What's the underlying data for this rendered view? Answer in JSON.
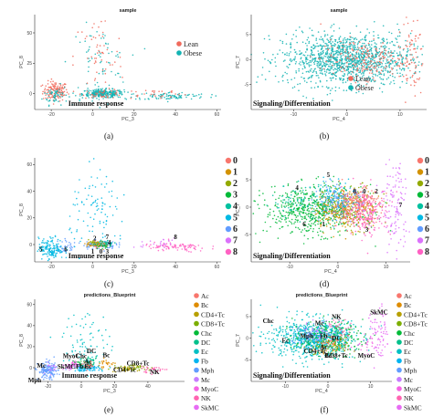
{
  "chart_data": [
    {
      "panel": "(a)",
      "type": "scatter",
      "title": "sample",
      "xlabel": "PC_3",
      "ylabel": "PC_8",
      "x_ticks": [
        -20,
        0,
        20,
        40,
        60
      ],
      "y_ticks": [
        0,
        25,
        50
      ],
      "xlim": [
        -28,
        62
      ],
      "ylim": [
        -13,
        65
      ],
      "annotation": "Immune response",
      "legend": [
        {
          "name": "Lean",
          "color": "#f06a5c"
        },
        {
          "name": "Obese",
          "color": "#13b3b3"
        }
      ],
      "clusters": [
        {
          "group": 0,
          "cx": -18,
          "cy": 2,
          "sx": 3,
          "sy": 4,
          "n": 140
        },
        {
          "group": 1,
          "cx": -18,
          "cy": -1,
          "sx": 3,
          "sy": 4,
          "n": 60
        },
        {
          "group": 1,
          "cx": 5,
          "cy": 0,
          "sx": 5,
          "sy": 1.8,
          "n": 260
        },
        {
          "group": 0,
          "cx": 5,
          "cy": 0,
          "sx": 5,
          "sy": 1.8,
          "n": 40
        },
        {
          "group": 1,
          "cx": 3,
          "cy": 25,
          "sx": 7,
          "sy": 15,
          "n": 70
        },
        {
          "group": 0,
          "cx": 3,
          "cy": 30,
          "sx": 6,
          "sy": 18,
          "n": 55
        },
        {
          "group": 1,
          "cx": 38,
          "cy": -2,
          "sx": 9,
          "sy": 1.6,
          "n": 90
        },
        {
          "group": 0,
          "cx": 30,
          "cy": 0,
          "sx": 8,
          "sy": 2,
          "n": 30
        }
      ]
    },
    {
      "panel": "(b)",
      "type": "scatter",
      "title": "sample",
      "xlabel": "PC_4",
      "ylabel": "PC_7",
      "x_ticks": [
        -10,
        0,
        10
      ],
      "y_ticks": [
        -5,
        0,
        5
      ],
      "xlim": [
        -18,
        15
      ],
      "ylim": [
        -10,
        9
      ],
      "annotation": "Signaling/Differentiation",
      "legend": [
        {
          "name": "Lean",
          "color": "#f06a5c"
        },
        {
          "name": "Obese",
          "color": "#13b3b3"
        }
      ],
      "clusters": [
        {
          "group": 1,
          "cx": 0,
          "cy": 0,
          "sx": 6,
          "sy": 2.6,
          "n": 1300
        },
        {
          "group": 0,
          "cx": 3,
          "cy": 0,
          "sx": 4,
          "sy": 2,
          "n": 200
        },
        {
          "group": 0,
          "cx": 12,
          "cy": 0,
          "sx": 1.2,
          "sy": 4,
          "n": 70
        }
      ]
    },
    {
      "panel": "(c)",
      "type": "scatter",
      "title": "",
      "xlabel": "PC_3",
      "ylabel": "PC_8",
      "x_ticks": [
        -20,
        0,
        20,
        40,
        60
      ],
      "y_ticks": [
        0,
        20,
        40,
        60
      ],
      "xlim": [
        -28,
        62
      ],
      "ylim": [
        -13,
        65
      ],
      "annotation": "Immune response",
      "legend": [
        {
          "name": "0",
          "color": "#f8766d"
        },
        {
          "name": "1",
          "color": "#d39200"
        },
        {
          "name": "2",
          "color": "#93aa00"
        },
        {
          "name": "3",
          "color": "#00ba38"
        },
        {
          "name": "4",
          "color": "#00c19f"
        },
        {
          "name": "5",
          "color": "#00b9e3"
        },
        {
          "name": "6",
          "color": "#619cff"
        },
        {
          "name": "7",
          "color": "#db72fb"
        },
        {
          "name": "8",
          "color": "#ff61c3"
        }
      ],
      "cluster_labels": [
        {
          "text": "5",
          "x": -25,
          "y": -5
        },
        {
          "text": "6",
          "x": -13,
          "y": -5
        },
        {
          "text": "1",
          "x": 0,
          "y": -7
        },
        {
          "text": "0",
          "x": 4,
          "y": -7
        },
        {
          "text": "3",
          "x": 7,
          "y": -7
        },
        {
          "text": "2",
          "x": 1,
          "y": 3
        },
        {
          "text": "7",
          "x": 7,
          "y": 4
        },
        {
          "text": "4",
          "x": 8,
          "y": 0
        },
        {
          "text": "8",
          "x": 40,
          "y": 4
        }
      ],
      "clusters": [
        {
          "group": 5,
          "cx": -20,
          "cy": -3,
          "sx": 3,
          "sy": 4,
          "n": 160
        },
        {
          "group": 6,
          "cx": -12,
          "cy": -1,
          "sx": 2.5,
          "sy": 2.5,
          "n": 30
        },
        {
          "group": 6,
          "cx": 3,
          "cy": 0,
          "sx": 4,
          "sy": 1.6,
          "n": 110
        },
        {
          "group": 1,
          "cx": 1,
          "cy": 0,
          "sx": 2,
          "sy": 1.2,
          "n": 40
        },
        {
          "group": 0,
          "cx": 4,
          "cy": 0,
          "sx": 2,
          "sy": 1.2,
          "n": 30
        },
        {
          "group": 3,
          "cx": 5,
          "cy": -1,
          "sx": 2,
          "sy": 1.2,
          "n": 25
        },
        {
          "group": 2,
          "cx": 2,
          "cy": 1,
          "sx": 2,
          "sy": 1.2,
          "n": 25
        },
        {
          "group": 4,
          "cx": 6,
          "cy": 1,
          "sx": 2,
          "sy": 1.2,
          "n": 20
        },
        {
          "group": 5,
          "cx": 3,
          "cy": 25,
          "sx": 7,
          "sy": 15,
          "n": 100
        },
        {
          "group": 8,
          "cx": 40,
          "cy": -2,
          "sx": 8,
          "sy": 1.8,
          "n": 90
        },
        {
          "group": 7,
          "cx": 30,
          "cy": 1,
          "sx": 7,
          "sy": 2,
          "n": 20
        }
      ]
    },
    {
      "panel": "(d)",
      "type": "scatter",
      "title": "",
      "xlabel": "PC_4",
      "ylabel": "PC_7",
      "x_ticks": [
        -10,
        0,
        10
      ],
      "y_ticks": [
        -5,
        0,
        5
      ],
      "xlim": [
        -18,
        15
      ],
      "ylim": [
        -10,
        9
      ],
      "annotation": "Signaling/Differentiation",
      "legend": [
        {
          "name": "0",
          "color": "#f8766d"
        },
        {
          "name": "1",
          "color": "#d39200"
        },
        {
          "name": "2",
          "color": "#93aa00"
        },
        {
          "name": "3",
          "color": "#00ba38"
        },
        {
          "name": "4",
          "color": "#00c19f"
        },
        {
          "name": "5",
          "color": "#00b9e3"
        },
        {
          "name": "6",
          "color": "#619cff"
        },
        {
          "name": "7",
          "color": "#db72fb"
        },
        {
          "name": "8",
          "color": "#ff61c3"
        }
      ],
      "cluster_labels": [
        {
          "text": "4",
          "x": -8.5,
          "y": 3.2
        },
        {
          "text": "5",
          "x": -2,
          "y": 5.5
        },
        {
          "text": "8",
          "x": 3.5,
          "y": 2.5
        },
        {
          "text": "0",
          "x": 5.5,
          "y": 2.5
        },
        {
          "text": "2",
          "x": 8,
          "y": 2.5
        },
        {
          "text": "7",
          "x": 13,
          "y": 0
        },
        {
          "text": "6",
          "x": -7,
          "y": -3.5
        },
        {
          "text": "1",
          "x": -3,
          "y": -3.5
        },
        {
          "text": "3",
          "x": 6,
          "y": -4.5
        }
      ],
      "clusters": [
        {
          "group": 3,
          "cx": -5,
          "cy": -0.5,
          "sx": 5,
          "sy": 2.2,
          "n": 600
        },
        {
          "group": 2,
          "cx": 3,
          "cy": 0,
          "sx": 3,
          "sy": 2,
          "n": 150
        },
        {
          "group": 1,
          "cx": 1,
          "cy": -0.5,
          "sx": 3,
          "sy": 1.8,
          "n": 200
        },
        {
          "group": 0,
          "cx": 4,
          "cy": 0.5,
          "sx": 2.5,
          "sy": 1.5,
          "n": 220
        },
        {
          "group": 6,
          "cx": 0,
          "cy": 1,
          "sx": 2.5,
          "sy": 1.4,
          "n": 120
        },
        {
          "group": 5,
          "cx": -1,
          "cy": 2.5,
          "sx": 2,
          "sy": 1.5,
          "n": 60
        },
        {
          "group": 8,
          "cx": 6,
          "cy": -1,
          "sx": 2.5,
          "sy": 2.2,
          "n": 200
        },
        {
          "group": 7,
          "cx": 12,
          "cy": 0,
          "sx": 1.3,
          "sy": 4.5,
          "n": 120
        },
        {
          "group": 4,
          "cx": -8,
          "cy": 1,
          "sx": 3,
          "sy": 1.5,
          "n": 80
        }
      ]
    },
    {
      "panel": "(e)",
      "type": "scatter",
      "title": "predictions_Blueprint",
      "xlabel": "PC_3",
      "ylabel": "PC_8",
      "x_ticks": [
        -20,
        0,
        20,
        40
      ],
      "y_ticks": [
        0,
        20,
        40,
        60
      ],
      "xlim": [
        -28,
        62
      ],
      "ylim": [
        -13,
        65
      ],
      "annotation": "Immune response",
      "legend": [
        {
          "name": "Ac",
          "color": "#f8766d"
        },
        {
          "name": "Bc",
          "color": "#de8c00"
        },
        {
          "name": "CD4+Tc",
          "color": "#b79f00"
        },
        {
          "name": "CD8+Tc",
          "color": "#7cae00"
        },
        {
          "name": "Chc",
          "color": "#00ba38"
        },
        {
          "name": "DC",
          "color": "#00c08b"
        },
        {
          "name": "Ec",
          "color": "#00bfc4"
        },
        {
          "name": "Fb",
          "color": "#00b4f0"
        },
        {
          "name": "Mph",
          "color": "#619cff"
        },
        {
          "name": "Mc",
          "color": "#c77cff"
        },
        {
          "name": "MyoC",
          "color": "#f564e3"
        },
        {
          "name": "NK",
          "color": "#ff64b0"
        },
        {
          "name": "SkMC",
          "color": "#e76bf3"
        }
      ],
      "cluster_labels": [
        {
          "text": "DC",
          "x": 6,
          "y": 14
        },
        {
          "text": "MyoC",
          "x": -6,
          "y": 9
        },
        {
          "text": "Chc",
          "x": 0,
          "y": 9
        },
        {
          "text": "Bc",
          "x": 15,
          "y": 10
        },
        {
          "text": "Ac",
          "x": 4,
          "y": 4
        },
        {
          "text": "Mc",
          "x": -24,
          "y": 0
        },
        {
          "text": "SkMC",
          "x": -9,
          "y": -1
        },
        {
          "text": "Fb",
          "x": -1,
          "y": -1
        },
        {
          "text": "Ec",
          "x": 4,
          "y": -1
        },
        {
          "text": "CD8+Tc",
          "x": 34,
          "y": 2
        },
        {
          "text": "CD4+Tc",
          "x": 26,
          "y": -4
        },
        {
          "text": "NK",
          "x": 44,
          "y": -6
        },
        {
          "text": "Mph",
          "x": -28,
          "y": -14
        }
      ],
      "clusters": [
        {
          "group": 8,
          "cx": -20,
          "cy": -3,
          "sx": 3,
          "sy": 4,
          "n": 150
        },
        {
          "group": 9,
          "cx": -18,
          "cy": 0,
          "sx": 2,
          "sy": 3,
          "n": 20
        },
        {
          "group": 7,
          "cx": 3,
          "cy": 0,
          "sx": 4,
          "sy": 1.6,
          "n": 120
        },
        {
          "group": 6,
          "cx": 3,
          "cy": 25,
          "sx": 7,
          "sy": 15,
          "n": 80
        },
        {
          "group": 4,
          "cx": 0,
          "cy": 4,
          "sx": 3,
          "sy": 2,
          "n": 40
        },
        {
          "group": 10,
          "cx": -4,
          "cy": 3,
          "sx": 2,
          "sy": 1.5,
          "n": 30
        },
        {
          "group": 5,
          "cx": 6,
          "cy": 6,
          "sx": 2,
          "sy": 2,
          "n": 30
        },
        {
          "group": 0,
          "cx": 4,
          "cy": 2,
          "sx": 2,
          "sy": 1.5,
          "n": 30
        },
        {
          "group": 12,
          "cx": -7,
          "cy": 0,
          "sx": 2,
          "sy": 1.5,
          "n": 20
        },
        {
          "group": 1,
          "cx": 15,
          "cy": 4,
          "sx": 3,
          "sy": 2,
          "n": 25
        },
        {
          "group": 3,
          "cx": 32,
          "cy": 0,
          "sx": 5,
          "sy": 1.5,
          "n": 45
        },
        {
          "group": 2,
          "cx": 26,
          "cy": -1,
          "sx": 4,
          "sy": 1.5,
          "n": 40
        },
        {
          "group": 11,
          "cx": 42,
          "cy": -2,
          "sx": 5,
          "sy": 1.5,
          "n": 35
        }
      ]
    },
    {
      "panel": "(f)",
      "type": "scatter",
      "title": "predictions_Blueprint",
      "xlabel": "PC_4",
      "ylabel": "PC_7",
      "x_ticks": [
        -10,
        0,
        10
      ],
      "y_ticks": [
        -5,
        0,
        5
      ],
      "xlim": [
        -18,
        15
      ],
      "ylim": [
        -10,
        9
      ],
      "annotation": "Signaling/Differentiation",
      "legend": [
        {
          "name": "Ac",
          "color": "#f8766d"
        },
        {
          "name": "Bc",
          "color": "#de8c00"
        },
        {
          "name": "CD4+Tc",
          "color": "#b79f00"
        },
        {
          "name": "CD8+Tc",
          "color": "#7cae00"
        },
        {
          "name": "Chc",
          "color": "#00ba38"
        },
        {
          "name": "DC",
          "color": "#00c08b"
        },
        {
          "name": "Ec",
          "color": "#00bfc4"
        },
        {
          "name": "Fb",
          "color": "#00b4f0"
        },
        {
          "name": "Mph",
          "color": "#619cff"
        },
        {
          "name": "Mc",
          "color": "#c77cff"
        },
        {
          "name": "MyoC",
          "color": "#f564e3"
        },
        {
          "name": "NK",
          "color": "#ff64b0"
        },
        {
          "name": "SkMC",
          "color": "#e76bf3"
        }
      ],
      "cluster_labels": [
        {
          "text": "Chc",
          "x": -14,
          "y": 3.5
        },
        {
          "text": "Mc",
          "x": -2,
          "y": 3
        },
        {
          "text": "NK",
          "x": 2,
          "y": 4.5
        },
        {
          "text": "SkMC",
          "x": 12,
          "y": 5.5
        },
        {
          "text": "Ec",
          "x": -10,
          "y": -1
        },
        {
          "text": "Mph",
          "x": -5,
          "y": 0
        },
        {
          "text": "Fb",
          "x": -1,
          "y": 0
        },
        {
          "text": "DC",
          "x": 2,
          "y": -0.5
        },
        {
          "text": "Ac",
          "x": -1,
          "y": -2.5
        },
        {
          "text": "CD4+Tc",
          "x": -3,
          "y": -3.5
        },
        {
          "text": "Bc",
          "x": 0,
          "y": -4.5
        },
        {
          "text": "CD8+Tc",
          "x": 2,
          "y": -4.5
        },
        {
          "text": "MyoC",
          "x": 9,
          "y": -4.5
        }
      ],
      "clusters": [
        {
          "group": 6,
          "cx": -4,
          "cy": 0,
          "sx": 5,
          "sy": 2.4,
          "n": 650
        },
        {
          "group": 4,
          "cx": 0,
          "cy": 0,
          "sx": 4,
          "sy": 2,
          "n": 250
        },
        {
          "group": 7,
          "cx": -1,
          "cy": 0,
          "sx": 3,
          "sy": 1.6,
          "n": 120
        },
        {
          "group": 9,
          "cx": -2,
          "cy": 1.5,
          "sx": 2,
          "sy": 1.2,
          "n": 50
        },
        {
          "group": 5,
          "cx": 2,
          "cy": 0,
          "sx": 2,
          "sy": 1.4,
          "n": 60
        },
        {
          "group": 0,
          "cx": 1,
          "cy": -1,
          "sx": 2,
          "sy": 1.2,
          "n": 40
        },
        {
          "group": 8,
          "cx": -5,
          "cy": 0.5,
          "sx": 2,
          "sy": 1.2,
          "n": 40
        },
        {
          "group": 11,
          "cx": 3,
          "cy": 2,
          "sx": 1.5,
          "sy": 1.2,
          "n": 30
        },
        {
          "group": 12,
          "cx": 12,
          "cy": 1,
          "sx": 1.3,
          "sy": 4,
          "n": 80
        },
        {
          "group": 10,
          "cx": 9,
          "cy": -2,
          "sx": 1.5,
          "sy": 1.5,
          "n": 25
        },
        {
          "group": 2,
          "cx": -2,
          "cy": -2,
          "sx": 1.5,
          "sy": 1,
          "n": 25
        },
        {
          "group": 3,
          "cx": 2,
          "cy": -2,
          "sx": 1.5,
          "sy": 1,
          "n": 25
        },
        {
          "group": 1,
          "cx": 0,
          "cy": -2.5,
          "sx": 1.5,
          "sy": 1,
          "n": 20
        }
      ]
    }
  ]
}
